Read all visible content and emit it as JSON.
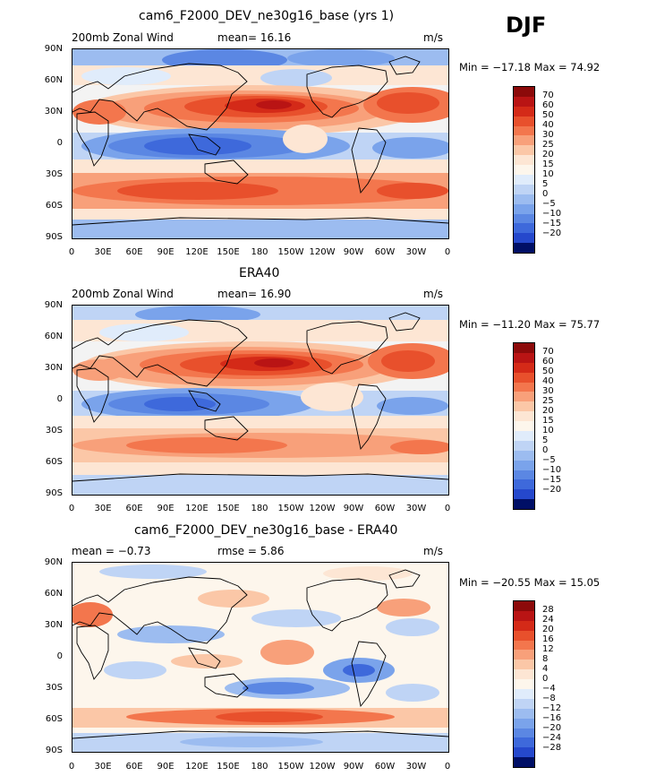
{
  "season": "DJF",
  "unit": "m/s",
  "palette_warm": [
    "#8c0a0a",
    "#b91414",
    "#d42a18",
    "#e8502c",
    "#f3764d",
    "#f8a07a",
    "#fbc7a7",
    "#fde6d4",
    "#fdf6ec"
  ],
  "palette_cool": [
    "#e0ecfb",
    "#bfd4f5",
    "#9cbcf0",
    "#7aa3eb",
    "#5b87e3",
    "#3e69db",
    "#2548cc",
    "#1229b3",
    "#061a8a",
    "#000f66"
  ],
  "panels": [
    {
      "id": "model",
      "title": "cam6_F2000_DEV_ne30g16_base (yrs 1)",
      "left_text": "200mb  Zonal Wind",
      "center_text": "mean=  16.16",
      "unit_text": "m/s",
      "minmax": "Min = −17.18  Max =  74.92",
      "colorbar_levels": [
        "70",
        "60",
        "50",
        "40",
        "30",
        "25",
        "20",
        "15",
        "10",
        "5",
        "0",
        "−5",
        "−10",
        "−15",
        "−20"
      ],
      "colorbar_colors": [
        "#8c0a0a",
        "#b91414",
        "#d42a18",
        "#e8502c",
        "#f3764d",
        "#f8a07a",
        "#fbc7a7",
        "#fde6d4",
        "#fdf6ec",
        "#e0ecfb",
        "#bfd4f5",
        "#9cbcf0",
        "#7aa3eb",
        "#5b87e3",
        "#3e69db",
        "#2548cc",
        "#000f66"
      ]
    },
    {
      "id": "obs",
      "title": "ERA40",
      "left_text": "200mb  Zonal Wind",
      "center_text": "mean=  16.90",
      "unit_text": "m/s",
      "minmax": "Min = −11.20  Max =  75.77",
      "colorbar_levels": [
        "70",
        "60",
        "50",
        "40",
        "30",
        "25",
        "20",
        "15",
        "10",
        "5",
        "0",
        "−5",
        "−10",
        "−15",
        "−20"
      ],
      "colorbar_colors": [
        "#8c0a0a",
        "#b91414",
        "#d42a18",
        "#e8502c",
        "#f3764d",
        "#f8a07a",
        "#fbc7a7",
        "#fde6d4",
        "#fdf6ec",
        "#e0ecfb",
        "#bfd4f5",
        "#9cbcf0",
        "#7aa3eb",
        "#5b87e3",
        "#3e69db",
        "#2548cc",
        "#000f66"
      ]
    },
    {
      "id": "diff",
      "title": "cam6_F2000_DEV_ne30g16_base - ERA40",
      "left_text": "mean =   −0.73",
      "center_text": "rmse =    5.86",
      "unit_text": "m/s",
      "minmax": "Min = −20.55  Max =   15.05",
      "colorbar_levels": [
        "28",
        "24",
        "20",
        "16",
        "12",
        "8",
        "4",
        "0",
        "−4",
        "−8",
        "−12",
        "−16",
        "−20",
        "−24",
        "−28"
      ],
      "colorbar_colors": [
        "#8c0a0a",
        "#b91414",
        "#d42a18",
        "#e8502c",
        "#f3764d",
        "#f8a07a",
        "#fbc7a7",
        "#fde6d4",
        "#fdf6ec",
        "#e0ecfb",
        "#bfd4f5",
        "#9cbcf0",
        "#7aa3eb",
        "#5b87e3",
        "#3e69db",
        "#2548cc",
        "#000f66"
      ]
    }
  ],
  "lat_ticks": [
    "90N",
    "60N",
    "30N",
    "0",
    "30S",
    "60S",
    "90S"
  ],
  "lon_ticks": [
    "0",
    "30E",
    "60E",
    "90E",
    "120E",
    "150E",
    "180",
    "150W",
    "120W",
    "90W",
    "60W",
    "30W",
    "0"
  ]
}
